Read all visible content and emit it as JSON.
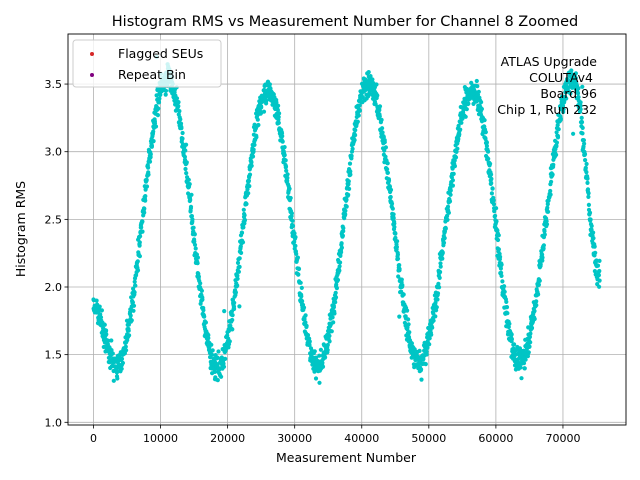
{
  "chart_data": {
    "type": "scatter",
    "title": "Histogram RMS vs Measurement Number for Channel 8 Zoomed",
    "xlabel": "Measurement Number",
    "ylabel": "Histogram RMS",
    "xlim": [
      -3800,
      79400
    ],
    "ylim": [
      0.98,
      3.87
    ],
    "x_ticks": [
      0,
      10000,
      20000,
      30000,
      40000,
      50000,
      60000,
      70000
    ],
    "x_tick_labels": [
      "0",
      "10000",
      "20000",
      "30000",
      "40000",
      "50000",
      "60000",
      "70000"
    ],
    "y_ticks": [
      1.0,
      1.5,
      2.0,
      2.5,
      3.0,
      3.5
    ],
    "y_tick_labels": [
      "1.0",
      "1.5",
      "2.0",
      "2.5",
      "3.0",
      "3.5"
    ],
    "grid": true,
    "legend_position": "top-left",
    "legend": [
      {
        "label": "Flagged SEUs",
        "color": "#d62728"
      },
      {
        "label": "Repeat Bin",
        "color": "#800080"
      }
    ],
    "annotation": [
      "ATLAS Upgrade",
      "COLUTAv4",
      "Board 96",
      "Chip 1, Run 232"
    ],
    "series": [
      {
        "color": "#00c5c5",
        "marker": "circle",
        "x_range": [
          0,
          75500
        ],
        "envelope": [
          {
            "x": 0,
            "y": 1.85
          },
          {
            "x": 3500,
            "y": 1.42
          },
          {
            "x": 11000,
            "y": 3.55
          },
          {
            "x": 18500,
            "y": 1.4
          },
          {
            "x": 26000,
            "y": 3.45
          },
          {
            "x": 33500,
            "y": 1.42
          },
          {
            "x": 41000,
            "y": 3.5
          },
          {
            "x": 48500,
            "y": 1.45
          },
          {
            "x": 56500,
            "y": 3.45
          },
          {
            "x": 63500,
            "y": 1.45
          },
          {
            "x": 71500,
            "y": 3.55
          },
          {
            "x": 75500,
            "y": 2.1
          }
        ],
        "spread": 0.09
      }
    ],
    "markers": {
      "flagged_seus": {
        "name": "Flagged SEUs",
        "x": [],
        "y": []
      },
      "repeat_bin": {
        "name": "Repeat Bin",
        "x": [],
        "y": []
      }
    }
  }
}
